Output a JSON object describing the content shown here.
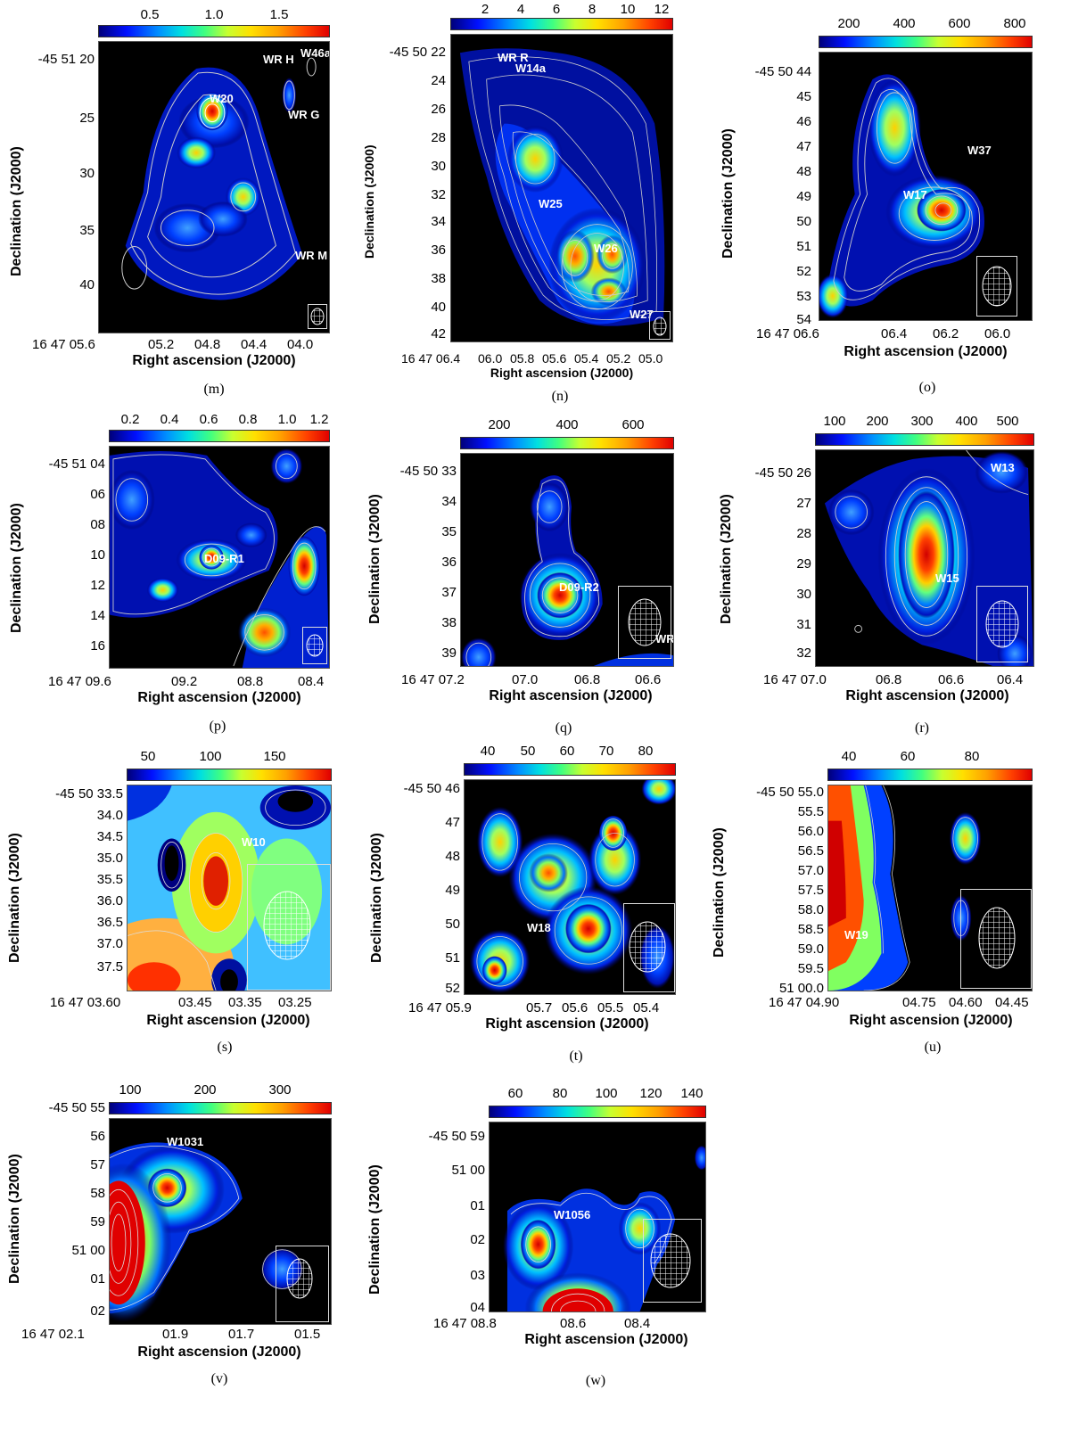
{
  "common": {
    "xlabel": "Right ascension (J2000)",
    "ylabel": "Declination (J2000)"
  },
  "panels": [
    {
      "id": "m",
      "caption": "(m)",
      "cbar": [
        "0.5",
        "1.0",
        "1.5"
      ],
      "yticks": [
        "-45 51 20",
        "25",
        "30",
        "35",
        "40"
      ],
      "xticks": [
        "16 47 05.6",
        "05.2",
        "04.8",
        "04.4",
        "04.0"
      ],
      "labels": [
        "W20",
        "WR H",
        "W46a",
        "WR G",
        "WR M"
      ]
    },
    {
      "id": "n",
      "caption": "(n)",
      "cbar": [
        "2",
        "4",
        "6",
        "8",
        "10",
        "12"
      ],
      "yticks": [
        "-45 50 22",
        "24",
        "26",
        "28",
        "30",
        "32",
        "34",
        "36",
        "38",
        "40",
        "42"
      ],
      "xticks": [
        "16 47 06.4",
        "06.0",
        "05.8",
        "05.6",
        "05.4",
        "05.2",
        "05.0"
      ],
      "labels": [
        "WR R",
        "W14a",
        "W25",
        "W26",
        "W27"
      ]
    },
    {
      "id": "o",
      "caption": "(o)",
      "cbar": [
        "200",
        "400",
        "600",
        "800"
      ],
      "yticks": [
        "-45 50 44",
        "45",
        "46",
        "47",
        "48",
        "49",
        "50",
        "51",
        "52",
        "53",
        "54"
      ],
      "xticks": [
        "16 47 06.6",
        "06.4",
        "06.2",
        "06.0"
      ],
      "labels": [
        "W37",
        "W17"
      ]
    },
    {
      "id": "p",
      "caption": "(p)",
      "cbar": [
        "0.2",
        "0.4",
        "0.6",
        "0.8",
        "1.0",
        "1.2"
      ],
      "yticks": [
        "-45 51 04",
        "06",
        "08",
        "10",
        "12",
        "14",
        "16"
      ],
      "xticks": [
        "16 47 09.6",
        "09.2",
        "08.8",
        "08.4"
      ],
      "labels": [
        "D09-R1"
      ]
    },
    {
      "id": "q",
      "caption": "(q)",
      "cbar": [
        "200",
        "400",
        "600"
      ],
      "yticks": [
        "-45 50 33",
        "34",
        "35",
        "36",
        "37",
        "38",
        "39"
      ],
      "xticks": [
        "16 47 07.2",
        "07.0",
        "06.8",
        "06.6"
      ],
      "labels": [
        "D09-R2",
        "WR"
      ]
    },
    {
      "id": "r",
      "caption": "(r)",
      "cbar": [
        "100",
        "200",
        "300",
        "400",
        "500"
      ],
      "yticks": [
        "-45 50 26",
        "27",
        "28",
        "29",
        "30",
        "31",
        "32"
      ],
      "xticks": [
        "16 47 07.0",
        "06.8",
        "06.6",
        "06.4"
      ],
      "labels": [
        "W13",
        "W15"
      ]
    },
    {
      "id": "s",
      "caption": "(s)",
      "cbar": [
        "50",
        "100",
        "150"
      ],
      "yticks": [
        "-45 50 33.5",
        "34.0",
        "34.5",
        "35.0",
        "35.5",
        "36.0",
        "36.5",
        "37.0",
        "37.5"
      ],
      "xticks": [
        "16 47 03.60",
        "03.45",
        "03.35",
        "03.25"
      ],
      "labels": [
        "W10"
      ]
    },
    {
      "id": "t",
      "caption": "(t)",
      "cbar": [
        "40",
        "50",
        "60",
        "70",
        "80"
      ],
      "yticks": [
        "-45 50 46",
        "47",
        "48",
        "49",
        "50",
        "51",
        "52"
      ],
      "xticks": [
        "16 47 05.9",
        "05.7",
        "05.6",
        "05.5",
        "05.4"
      ],
      "labels": [
        "W18"
      ]
    },
    {
      "id": "u",
      "caption": "(u)",
      "cbar": [
        "40",
        "60",
        "80"
      ],
      "yticks": [
        "-45 50 55.0",
        "55.5",
        "56.0",
        "56.5",
        "57.0",
        "57.5",
        "58.0",
        "58.5",
        "59.0",
        "59.5",
        "51 00.0"
      ],
      "xticks": [
        "16 47 04.90",
        "04.75",
        "04.60",
        "04.45"
      ],
      "labels": [
        "W19"
      ]
    },
    {
      "id": "v",
      "caption": "(v)",
      "cbar": [
        "100",
        "200",
        "300"
      ],
      "yticks": [
        "-45 50 55",
        "56",
        "57",
        "58",
        "59",
        "51 00",
        "01",
        "02"
      ],
      "xticks": [
        "16 47 02.1",
        "01.9",
        "01.7",
        "01.5"
      ],
      "labels": [
        "W1031"
      ]
    },
    {
      "id": "w",
      "caption": "(w)",
      "cbar": [
        "60",
        "80",
        "100",
        "120",
        "140"
      ],
      "yticks": [
        "-45 50 59",
        "51 00",
        "01",
        "02",
        "03",
        "04"
      ],
      "xticks": [
        "16 47 08.8",
        "08.6",
        "08.4"
      ],
      "labels": [
        "W1056"
      ]
    }
  ]
}
